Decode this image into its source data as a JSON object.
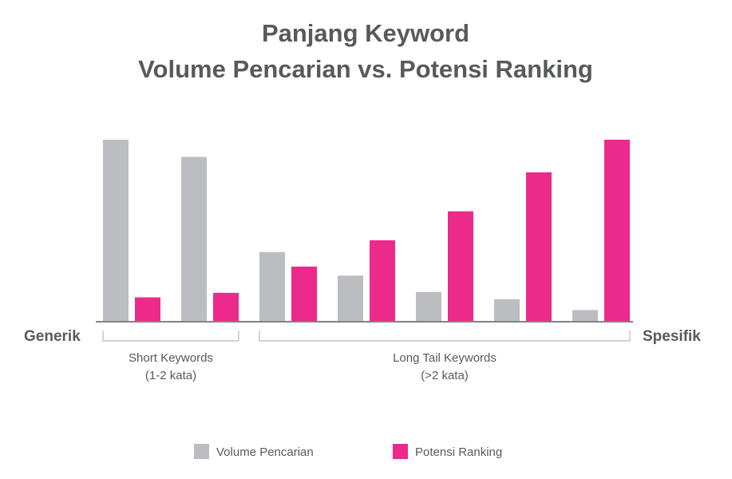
{
  "chart_data": {
    "type": "bar",
    "title": [
      "Panjang Keyword",
      "Volume Pencarian vs. Potensi Ranking"
    ],
    "axis_left_label": "Generik",
    "axis_right_label": "Spesifik",
    "groups": [
      {
        "lines": [
          "Short Keywords",
          "(1-2 kata)"
        ],
        "from": 0,
        "to": 1
      },
      {
        "lines": [
          "Long Tail Keywords",
          "(>2 kata)"
        ],
        "from": 2,
        "to": 6
      }
    ],
    "ylim": [
      0,
      100
    ],
    "legend_position": "bottom",
    "series": [
      {
        "name": "Volume Pencarian",
        "color": "#bcbdc0",
        "values": [
          100,
          90.5,
          38,
          25,
          16,
          12,
          6
        ]
      },
      {
        "name": "Potensi Ranking",
        "color": "#ec2a8b",
        "values": [
          13,
          15.5,
          30,
          44.5,
          60.5,
          82,
          100
        ]
      }
    ]
  }
}
